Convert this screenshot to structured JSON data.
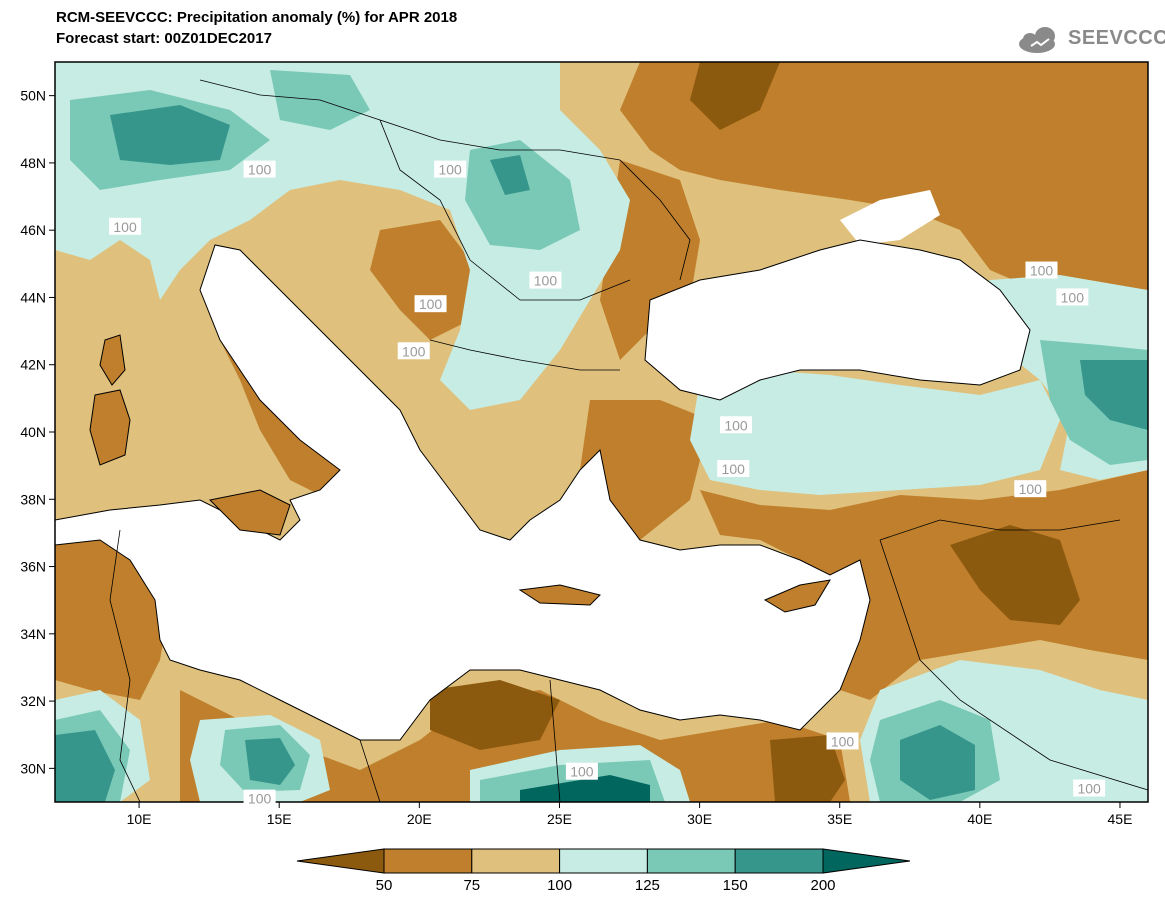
{
  "header": {
    "title_line1": "RCM-SEEVCCC: Precipitation anomaly (%) for APR 2018",
    "title_line2": "Forecast start: 00Z01DEC2017",
    "logo_text": "SEEVCCC"
  },
  "map": {
    "projection": "lat-lon",
    "lon_range": [
      7,
      46
    ],
    "lat_range": [
      29,
      51
    ],
    "lat_ticks": [
      {
        "value": 50,
        "label": "50N"
      },
      {
        "value": 48,
        "label": "48N"
      },
      {
        "value": 46,
        "label": "46N"
      },
      {
        "value": 44,
        "label": "44N"
      },
      {
        "value": 42,
        "label": "42N"
      },
      {
        "value": 40,
        "label": "40N"
      },
      {
        "value": 38,
        "label": "38N"
      },
      {
        "value": 36,
        "label": "36N"
      },
      {
        "value": 34,
        "label": "34N"
      },
      {
        "value": 32,
        "label": "32N"
      },
      {
        "value": 30,
        "label": "30N"
      }
    ],
    "lon_ticks": [
      {
        "value": 10,
        "label": "10E"
      },
      {
        "value": 15,
        "label": "15E"
      },
      {
        "value": 20,
        "label": "20E"
      },
      {
        "value": 25,
        "label": "25E"
      },
      {
        "value": 30,
        "label": "30E"
      },
      {
        "value": 35,
        "label": "35E"
      },
      {
        "value": 40,
        "label": "40E"
      },
      {
        "value": 45,
        "label": "45E"
      }
    ],
    "contour_label": "100",
    "contour_labels": [
      {
        "lon": 14.3,
        "lat": 47.8
      },
      {
        "lon": 21.1,
        "lat": 47.8
      },
      {
        "lon": 9.5,
        "lat": 46.1
      },
      {
        "lon": 24.5,
        "lat": 44.5
      },
      {
        "lon": 20.4,
        "lat": 43.8
      },
      {
        "lon": 42.2,
        "lat": 44.8
      },
      {
        "lon": 43.3,
        "lat": 44.0
      },
      {
        "lon": 19.8,
        "lat": 42.4
      },
      {
        "lon": 31.3,
        "lat": 40.2
      },
      {
        "lon": 31.2,
        "lat": 38.9
      },
      {
        "lon": 41.8,
        "lat": 38.3
      },
      {
        "lon": 25.8,
        "lat": 29.9
      },
      {
        "lon": 35.1,
        "lat": 30.8
      },
      {
        "lon": 14.3,
        "lat": 29.1
      },
      {
        "lon": 43.9,
        "lat": 29.4
      }
    ]
  },
  "colorbar": {
    "labels": [
      "50",
      "75",
      "100",
      "125",
      "150",
      "200"
    ],
    "colors": [
      "#8c5a0f",
      "#bf7f2c",
      "#dfc07c",
      "#c7ece3",
      "#79c9b6",
      "#37968c",
      "#01665e"
    ]
  }
}
